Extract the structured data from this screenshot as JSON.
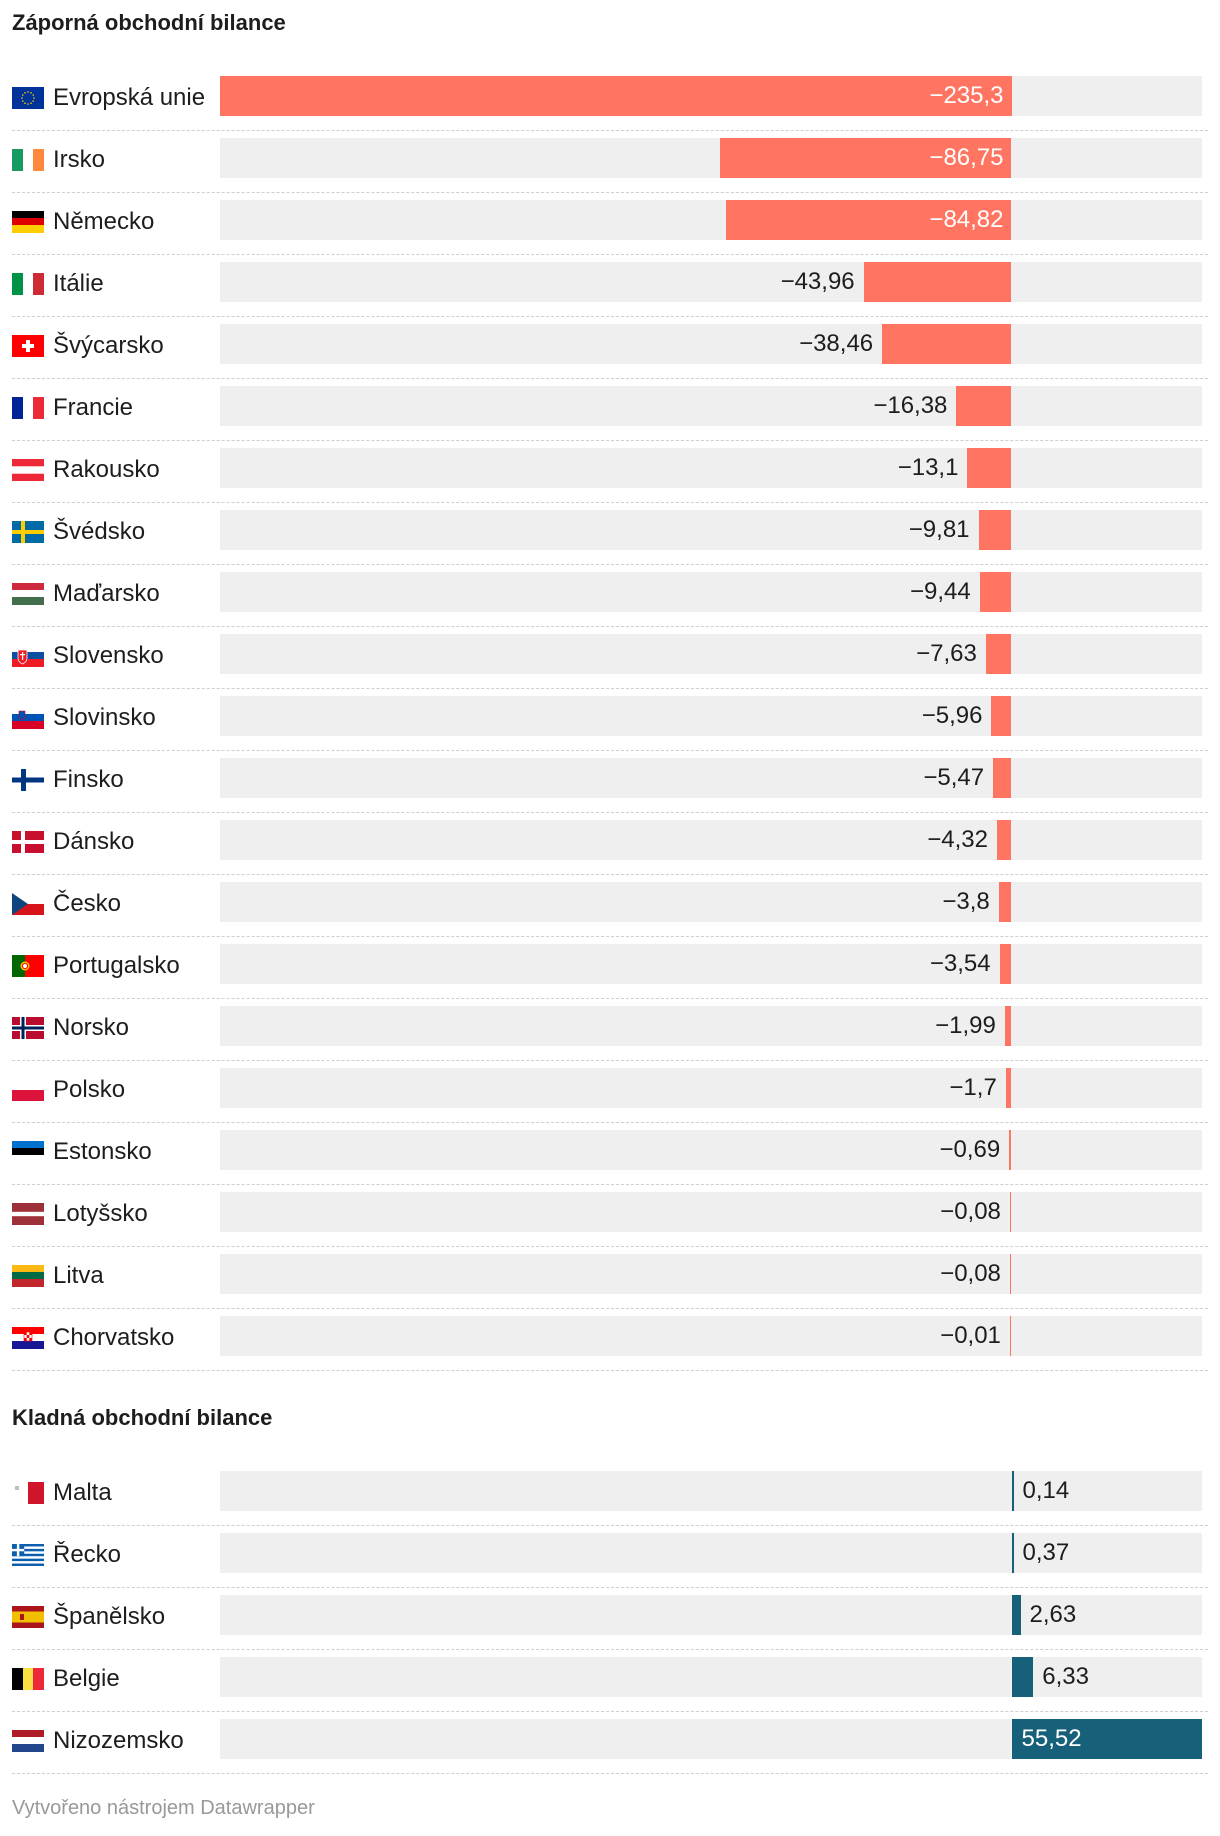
{
  "sections": [
    {
      "title": "Záporná obchodní bilance",
      "rows": [
        {
          "country": "Evropská unie",
          "value": -235.3,
          "label": "−235,3",
          "flag": "flag-eu"
        },
        {
          "country": "Irsko",
          "value": -86.75,
          "label": "−86,75",
          "flag": "flag-ie"
        },
        {
          "country": "Německo",
          "value": -84.82,
          "label": "−84,82",
          "flag": "flag-de"
        },
        {
          "country": "Itálie",
          "value": -43.96,
          "label": "−43,96",
          "flag": "flag-it"
        },
        {
          "country": "Švýcarsko",
          "value": -38.46,
          "label": "−38,46",
          "flag": "flag-ch"
        },
        {
          "country": "Francie",
          "value": -16.38,
          "label": "−16,38",
          "flag": "flag-fr"
        },
        {
          "country": "Rakousko",
          "value": -13.1,
          "label": "−13,1",
          "flag": "flag-at"
        },
        {
          "country": "Švédsko",
          "value": -9.81,
          "label": "−9,81",
          "flag": "flag-se"
        },
        {
          "country": "Maďarsko",
          "value": -9.44,
          "label": "−9,44",
          "flag": "flag-hu"
        },
        {
          "country": "Slovensko",
          "value": -7.63,
          "label": "−7,63",
          "flag": "flag-sk"
        },
        {
          "country": "Slovinsko",
          "value": -5.96,
          "label": "−5,96",
          "flag": "flag-si"
        },
        {
          "country": "Finsko",
          "value": -5.47,
          "label": "−5,47",
          "flag": "flag-fi"
        },
        {
          "country": "Dánsko",
          "value": -4.32,
          "label": "−4,32",
          "flag": "flag-dk"
        },
        {
          "country": "Česko",
          "value": -3.8,
          "label": "−3,8",
          "flag": "flag-cz"
        },
        {
          "country": "Portugalsko",
          "value": -3.54,
          "label": "−3,54",
          "flag": "flag-pt"
        },
        {
          "country": "Norsko",
          "value": -1.99,
          "label": "−1,99",
          "flag": "flag-no"
        },
        {
          "country": "Polsko",
          "value": -1.7,
          "label": "−1,7",
          "flag": "flag-pl"
        },
        {
          "country": "Estonsko",
          "value": -0.69,
          "label": "−0,69",
          "flag": "flag-ee"
        },
        {
          "country": "Lotyšsko",
          "value": -0.08,
          "label": "−0,08",
          "flag": "flag-lv"
        },
        {
          "country": "Litva",
          "value": -0.08,
          "label": "−0,08",
          "flag": "flag-lt"
        },
        {
          "country": "Chorvatsko",
          "value": -0.01,
          "label": "−0,01",
          "flag": "flag-hr"
        }
      ]
    },
    {
      "title": "Kladná obchodní bilance",
      "rows": [
        {
          "country": "Malta",
          "value": 0.14,
          "label": "0,14",
          "flag": "flag-mt"
        },
        {
          "country": "Řecko",
          "value": 0.37,
          "label": "0,37",
          "flag": "flag-gr"
        },
        {
          "country": "Španělsko",
          "value": 2.63,
          "label": "2,63",
          "flag": "flag-es"
        },
        {
          "country": "Belgie",
          "value": 6.33,
          "label": "6,33",
          "flag": "flag-be"
        },
        {
          "country": "Nizozemsko",
          "value": 55.52,
          "label": "55,52",
          "flag": "flag-nl"
        }
      ]
    }
  ],
  "chart_data": {
    "type": "bar",
    "categories": [
      "Evropská unie",
      "Irsko",
      "Německo",
      "Itálie",
      "Švýcarsko",
      "Francie",
      "Rakousko",
      "Švédsko",
      "Maďarsko",
      "Slovensko",
      "Slovinsko",
      "Finsko",
      "Dánsko",
      "Česko",
      "Portugalsko",
      "Norsko",
      "Polsko",
      "Estonsko",
      "Lotyšsko",
      "Litva",
      "Chorvatsko",
      "Malta",
      "Řecko",
      "Španělsko",
      "Belgie",
      "Nizozemsko"
    ],
    "values": [
      -235.3,
      -86.75,
      -84.82,
      -43.96,
      -38.46,
      -16.38,
      -13.1,
      -9.81,
      -9.44,
      -7.63,
      -5.96,
      -5.47,
      -4.32,
      -3.8,
      -3.54,
      -1.99,
      -1.7,
      -0.69,
      -0.08,
      -0.08,
      -0.01,
      0.14,
      0.37,
      2.63,
      6.33,
      55.52
    ],
    "xlim": [
      -235.3,
      55.52
    ],
    "orientation": "horizontal",
    "grid": false
  },
  "colors": {
    "negative": "#ff7562",
    "positive": "#17607a",
    "track": "#efefef",
    "footer": "#999999"
  },
  "footer": "Vytvořeno nástrojem Datawrapper"
}
